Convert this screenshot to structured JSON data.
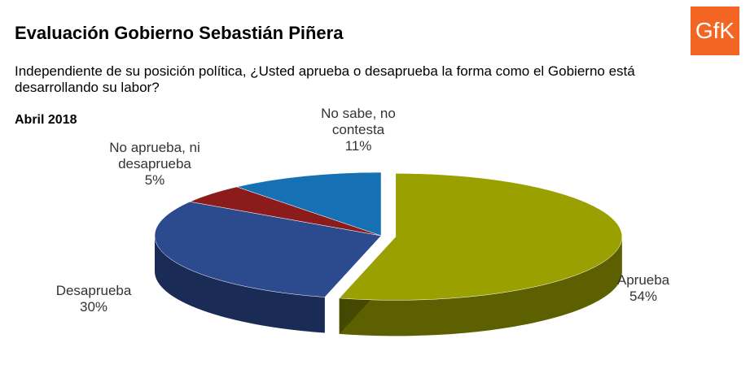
{
  "header": {
    "title": "Evaluación Gobierno Sebastián Piñera",
    "logo": "GfK",
    "question": "Independiente de su posición política, ¿Usted aprueba o desaprueba la forma como el Gobierno está desarrollando su labor?"
  },
  "chart_data": {
    "type": "pie",
    "title": "Abril 2018",
    "categories": [
      "Aprueba",
      "Desaprueba",
      "No aprueba, ni desaprueba",
      "No sabe, no contesta"
    ],
    "values": [
      54,
      30,
      5,
      11
    ],
    "value_labels": [
      "54%",
      "30%",
      "5%",
      "11%"
    ],
    "colors": [
      "#99a000",
      "#2c4a8e",
      "#8c1c1c",
      "#1570b4"
    ],
    "start": "top",
    "direction": "clockwise",
    "exploded": [
      0
    ]
  }
}
